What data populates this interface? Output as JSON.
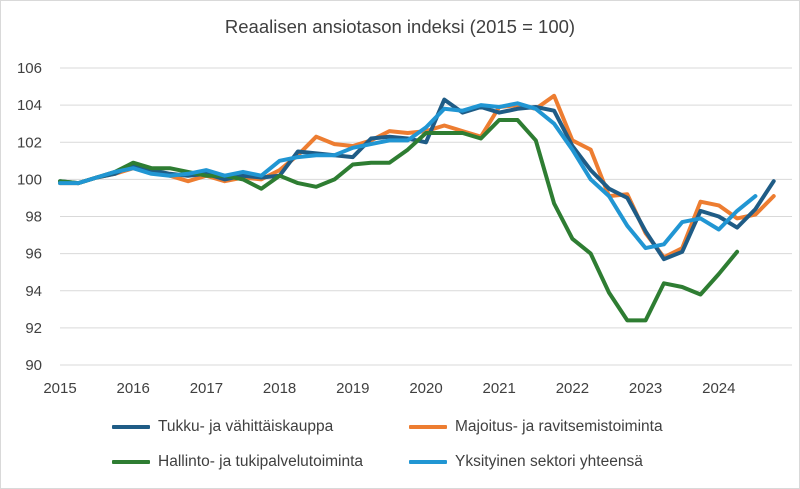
{
  "chart_data": {
    "type": "line",
    "title": "Reaalisen ansiotason indeksi (2015 = 100)",
    "xlabel": "",
    "ylabel": "",
    "ylim": [
      90,
      106
    ],
    "yticks": [
      "90",
      "92",
      "94",
      "96",
      "98",
      "100",
      "102",
      "104",
      "106"
    ],
    "xticks": [
      "2015",
      "2016",
      "2017",
      "2018",
      "2019",
      "2020",
      "2021",
      "2022",
      "2023",
      "2024"
    ],
    "x_start": 2015.0,
    "x_step": 0.25,
    "grid": "horizontal",
    "legend_position": "bottom",
    "series": [
      {
        "name": "Tukku- ja vähittäiskauppa",
        "color": "#1f5c86",
        "values": [
          99.9,
          99.8,
          100.1,
          100.3,
          100.8,
          100.5,
          100.3,
          100.2,
          100.3,
          100.0,
          100.2,
          100.1,
          100.2,
          101.5,
          101.4,
          101.3,
          101.2,
          102.2,
          102.3,
          102.2,
          102.0,
          104.3,
          103.6,
          103.9,
          103.6,
          103.8,
          103.9,
          103.7,
          101.8,
          100.5,
          99.5,
          99.0,
          97.2,
          95.7,
          96.1,
          98.3,
          98.0,
          97.4,
          98.4,
          99.9
        ]
      },
      {
        "name": "Majoitus- ja ravitsemistoiminta",
        "color": "#ed7d31",
        "values": [
          99.8,
          99.8,
          100.1,
          100.3,
          100.6,
          100.4,
          100.2,
          99.9,
          100.2,
          99.9,
          100.1,
          100.0,
          100.5,
          101.3,
          102.3,
          101.9,
          101.8,
          102.1,
          102.6,
          102.5,
          102.6,
          102.9,
          102.6,
          102.3,
          103.9,
          104.0,
          103.8,
          104.5,
          102.1,
          101.6,
          99.1,
          99.2,
          97.1,
          95.8,
          96.3,
          98.8,
          98.6,
          97.9,
          98.1,
          99.1
        ]
      },
      {
        "name": "Hallinto- ja tukipalvelutoiminta",
        "color": "#2e7d32",
        "values": [
          99.9,
          99.8,
          100.1,
          100.4,
          100.9,
          100.6,
          100.6,
          100.4,
          100.2,
          100.2,
          100.0,
          99.5,
          100.2,
          99.8,
          99.6,
          100.0,
          100.8,
          100.9,
          100.9,
          101.6,
          102.5,
          102.5,
          102.5,
          102.2,
          103.2,
          103.2,
          102.1,
          98.7,
          96.8,
          96.0,
          93.9,
          92.4,
          92.4,
          94.4,
          94.2,
          93.8,
          94.9,
          96.1
        ]
      },
      {
        "name": "Yksityinen sektori yhteensä",
        "color": "#2196d3",
        "values": [
          99.8,
          99.8,
          100.1,
          100.4,
          100.6,
          100.3,
          100.2,
          100.3,
          100.5,
          100.2,
          100.4,
          100.2,
          101.0,
          101.2,
          101.3,
          101.3,
          101.7,
          101.9,
          102.1,
          102.1,
          102.8,
          103.8,
          103.7,
          104.0,
          103.9,
          104.1,
          103.8,
          103.0,
          101.6,
          100.0,
          99.1,
          97.5,
          96.3,
          96.5,
          97.7,
          97.9,
          97.3,
          98.3,
          99.1
        ]
      }
    ]
  }
}
